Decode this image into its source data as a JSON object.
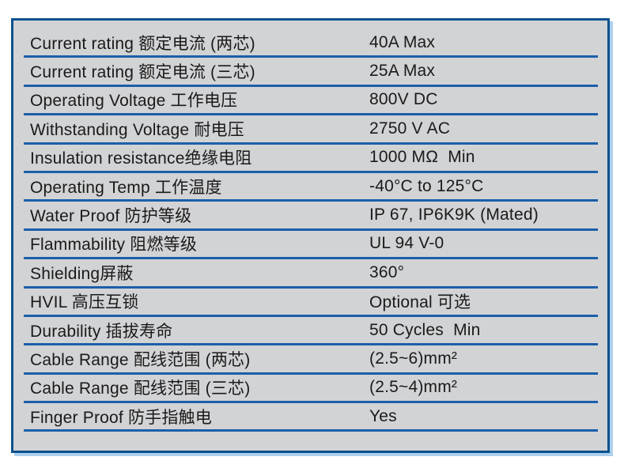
{
  "table": {
    "rows": [
      {
        "label": "Current rating 额定电流 (两芯)",
        "value": "40A Max"
      },
      {
        "label": "Current rating 额定电流 (三芯)",
        "value": "25A Max"
      },
      {
        "label": "Operating Voltage 工作电压",
        "value": "800V DC"
      },
      {
        "label": "Withstanding Voltage 耐电压",
        "value": "2750 V AC"
      },
      {
        "label": "Insulation resistance绝缘电阻",
        "value": "1000 MΩ  Min"
      },
      {
        "label": "Operating Temp 工作温度",
        "value": "-40°C to 125°C"
      },
      {
        "label": "Water Proof 防护等级",
        "value": "IP 67, IP6K9K (Mated)"
      },
      {
        "label": "Flammability 阻燃等级",
        "value": "UL 94 V-0"
      },
      {
        "label": "Shielding屏蔽",
        "value": "360°"
      },
      {
        "label": "HVIL 高压互锁",
        "value": "Optional 可选"
      },
      {
        "label": "Durability 插拔寿命",
        "value": "50 Cycles  Min"
      },
      {
        "label": "Cable Range 配线范围 (两芯)",
        "value": "(2.5~6)mm²"
      },
      {
        "label": "Cable Range 配线范围 (三芯)",
        "value": "(2.5~4)mm²"
      },
      {
        "label": "Finger Proof 防手指触电",
        "value": "Yes"
      }
    ],
    "colors": {
      "frame_border": "#09518e",
      "row_separator": "#1b5faa",
      "table_background": "#d2d3d5",
      "drop_shadow": "#aecfec",
      "text": "#1a1a1a",
      "page_background": "#ffffff"
    }
  }
}
